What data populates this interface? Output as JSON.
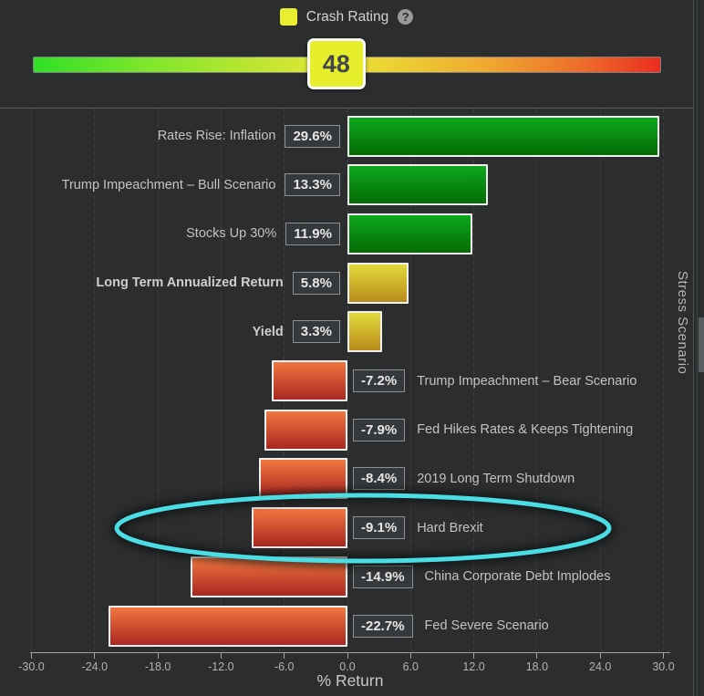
{
  "header": {
    "legend": {
      "label": "Crash Rating",
      "swatch_color": "#e9ee30",
      "help": "?"
    },
    "gauge": {
      "value": 48,
      "min": 0,
      "max": 100
    }
  },
  "chart_data": {
    "type": "bar",
    "orientation": "horizontal",
    "xlabel": "% Return",
    "right_axis_label": "Stress Scenario",
    "xlim": [
      -30,
      30
    ],
    "x_ticks": [
      -30,
      -24,
      -18,
      -12,
      -6,
      0,
      6,
      12,
      18,
      24,
      30
    ],
    "grid": "vertical-dashed",
    "rows": [
      {
        "label": "Rates Rise: Inflation",
        "value": 29.6,
        "display": "29.6%",
        "color": "green",
        "bold": false,
        "highlighted": false
      },
      {
        "label": "Trump Impeachment – Bull Scenario",
        "value": 13.3,
        "display": "13.3%",
        "color": "green",
        "bold": false,
        "highlighted": false
      },
      {
        "label": "Stocks Up 30%",
        "value": 11.9,
        "display": "11.9%",
        "color": "green",
        "bold": false,
        "highlighted": false
      },
      {
        "label": "Long Term Annualized Return",
        "value": 5.8,
        "display": "5.8%",
        "color": "yellow",
        "bold": true,
        "highlighted": false
      },
      {
        "label": "Yield",
        "value": 3.3,
        "display": "3.3%",
        "color": "yellow",
        "bold": true,
        "highlighted": false
      },
      {
        "label": "Trump Impeachment – Bear Scenario",
        "value": -7.2,
        "display": "-7.2%",
        "color": "red",
        "bold": false,
        "highlighted": false
      },
      {
        "label": "Fed Hikes Rates & Keeps Tightening",
        "value": -7.9,
        "display": "-7.9%",
        "color": "red",
        "bold": false,
        "highlighted": false
      },
      {
        "label": "2019 Long Term Shutdown",
        "value": -8.4,
        "display": "-8.4%",
        "color": "red",
        "bold": false,
        "highlighted": false
      },
      {
        "label": "Hard Brexit",
        "value": -9.1,
        "display": "-9.1%",
        "color": "red",
        "bold": false,
        "highlighted": true
      },
      {
        "label": "China Corporate Debt Implodes",
        "value": -14.9,
        "display": "-14.9%",
        "color": "red",
        "bold": false,
        "highlighted": false
      },
      {
        "label": "Fed Severe Scenario",
        "value": -22.7,
        "display": "-22.7%",
        "color": "red",
        "bold": false,
        "highlighted": false
      }
    ],
    "bar_colors": {
      "green": [
        "#0ca91c",
        "#056b05"
      ],
      "yellow": [
        "#e3da3a",
        "#b98b1c"
      ],
      "red": [
        "#f1773f",
        "#a92722"
      ]
    },
    "highlight_ellipse_color": "#4adde4"
  }
}
